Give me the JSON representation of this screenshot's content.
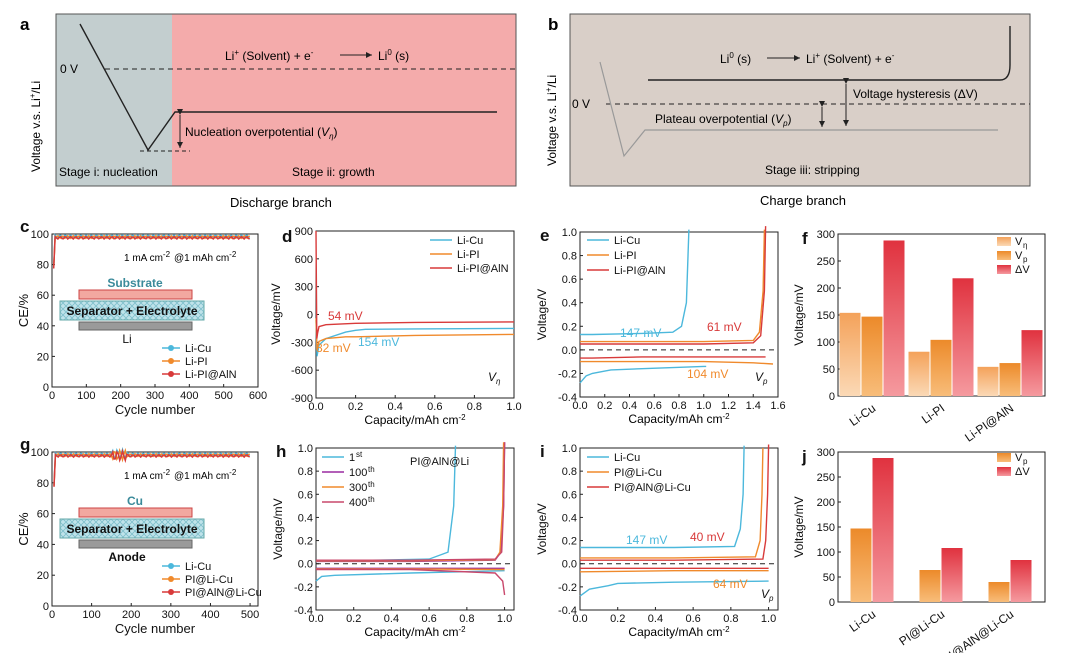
{
  "colors": {
    "li_cu": "#4cb8dc",
    "li_pi": "#f08a2c",
    "li_pi_aln": "#d83a3a",
    "c400": "#c9486c",
    "stage_i": "#c3cecf",
    "stage_ii": "#f4abab",
    "stage_iii": "#d9cfc8",
    "bar_light": "#f5b47a",
    "bar_mid": "#f08a2c",
    "bar_dark": "#e03a46"
  },
  "panel_a": {
    "letter": "a",
    "ylabel": "Voltage v.s. Li",
    "ylabel_sup": "+",
    "ylabel_tail": "/Li",
    "zero": "0 V",
    "reaction_left": "Li",
    "reaction_sup1": "+",
    "reaction_mid": " (Solvent) + e",
    "reaction_sup2": "-",
    "reaction_right": "Li",
    "reaction_sup3": "0",
    "reaction_tail": " (s)",
    "nucleation": "Nucleation overpotential (",
    "nucleation_sym": "V",
    "nucleation_sub": "η",
    "nucleation_close": ")",
    "stage_i": "Stage i: nucleation",
    "stage_ii": "Stage ii: growth",
    "caption": "Discharge branch"
  },
  "panel_b": {
    "letter": "b",
    "ylabel": "Voltage v.s. Li",
    "ylabel_sup": "+",
    "ylabel_tail": "/Li",
    "zero": "0 V",
    "reaction_left": "Li",
    "reaction_sup1": "0",
    "reaction_mid": " (s)",
    "reaction_right": "Li",
    "reaction_sup2": "+",
    "reaction_tail": " (Solvent) + e",
    "reaction_sup3": "-",
    "hysteresis": "Voltage hysteresis (ΔV)",
    "plateau": "Plateau overpotential (",
    "plateau_sym": "V",
    "plateau_sub": "p",
    "plateau_close": ")",
    "stage_iii": "Stage iii: stripping",
    "caption": "Charge branch"
  },
  "panel_c": {
    "letter": "c",
    "ylabel": "CE/%",
    "xlabel": "Cycle number",
    "condition": "1 mA cm",
    "cond_sup1": "-2",
    "cond_mid": "@1 mAh cm",
    "cond_sup2": "-2",
    "top_layer": "Substrate",
    "middle_layer": "Separator + Electrolyte",
    "bottom_layer": "Li",
    "legend": [
      "Li-Cu",
      "Li-PI",
      "Li-PI@AlN"
    ]
  },
  "panel_g": {
    "letter": "g",
    "ylabel": "CE/%",
    "xlabel": "Cycle number",
    "condition": "1 mA cm",
    "cond_sup1": "-2",
    "cond_mid": "@1 mAh cm",
    "cond_sup2": "-2",
    "top_layer": "Cu",
    "middle_layer": "Separator + Electrolyte",
    "bottom_layer": "Anode",
    "legend": [
      "Li-Cu",
      "PI@Li-Cu",
      "PI@AlN@Li-Cu"
    ]
  },
  "panel_d": {
    "letter": "d",
    "ylabel": "Voltage/mV",
    "xlabel": "Capacity/mAh cm",
    "xlabel_sup": "-2",
    "legend": [
      "Li-Cu",
      "Li-PI",
      "Li-PI@AlN"
    ],
    "ann": [
      "54 mV",
      "82 mV",
      "154 mV"
    ],
    "sym": "V",
    "sub": "η"
  },
  "panel_e": {
    "letter": "e",
    "ylabel": "Voltage/V",
    "xlabel": "Capacity/mAh cm",
    "xlabel_sup": "-2",
    "legend": [
      "Li-Cu",
      "Li-PI",
      "Li-PI@AlN"
    ],
    "ann": [
      "147 mV",
      "61 mV",
      "104 mV"
    ],
    "sym": "V",
    "sub": "p"
  },
  "panel_h": {
    "letter": "h",
    "ylabel": "Voltage/mV",
    "xlabel": "Capacity/mAh cm",
    "xlabel_sup": "-2",
    "legend": [
      "1",
      "100",
      "300",
      "400"
    ],
    "legend_sup": [
      "st",
      "th",
      "th",
      "th"
    ],
    "sample": "PI@AlN@Li"
  },
  "panel_i": {
    "letter": "i",
    "ylabel": "Voltage/V",
    "xlabel": "Capacity/mAh cm",
    "xlabel_sup": "-2",
    "legend": [
      "Li-Cu",
      "PI@Li-Cu",
      "PI@AlN@Li-Cu"
    ],
    "ann": [
      "147 mV",
      "40 mV",
      "64 mV"
    ],
    "sym": "V",
    "sub": "p"
  },
  "panel_f": {
    "letter": "f",
    "ylabel": "Voltage/mV",
    "legend": [
      "V",
      "V",
      "ΔV"
    ],
    "legend_sub": [
      "η",
      "p",
      ""
    ]
  },
  "panel_j": {
    "letter": "j",
    "ylabel": "Voltage/mV",
    "legend": [
      "V",
      "ΔV"
    ],
    "legend_sub": [
      "p",
      ""
    ]
  },
  "chart_data": [
    {
      "id": "c",
      "type": "scatter",
      "xlabel": "Cycle number",
      "ylabel": "CE/%",
      "xlim": [
        0,
        600
      ],
      "ylim": [
        0,
        100
      ],
      "xticks": [
        0,
        100,
        200,
        300,
        400,
        500,
        600
      ],
      "yticks": [
        0,
        20,
        40,
        60,
        80,
        100
      ],
      "series": [
        {
          "name": "Li-Cu",
          "approx_value": 98.5
        },
        {
          "name": "Li-PI",
          "approx_value": 98.0
        },
        {
          "name": "Li-PI@AlN",
          "approx_value": 97.5
        }
      ]
    },
    {
      "id": "d",
      "type": "line",
      "xlabel": "Capacity/mAh cm-2",
      "ylabel": "Voltage/mV",
      "xlim": [
        0,
        1.0
      ],
      "ylim": [
        -900,
        900
      ],
      "xticks": [
        0.0,
        0.2,
        0.4,
        0.6,
        0.8,
        1.0
      ],
      "yticks": [
        -900,
        -600,
        -300,
        0,
        300,
        600,
        900
      ],
      "series": [
        {
          "name": "Li-Cu",
          "x": [
            0,
            0.005,
            0.015,
            0.05,
            0.15,
            0.2,
            0.25,
            0.5,
            1.0
          ],
          "y": [
            -60,
            -450,
            -330,
            -260,
            -190,
            -170,
            -160,
            -155,
            -150
          ]
        },
        {
          "name": "Li-PI",
          "x": [
            0,
            0.005,
            0.015,
            0.05,
            0.15,
            0.2,
            0.5,
            1.0
          ],
          "y": [
            -40,
            -380,
            -290,
            -260,
            -240,
            -240,
            -225,
            -215
          ]
        },
        {
          "name": "Li-PI@AlN",
          "x": [
            0,
            0.004,
            0.008,
            0.015,
            0.05,
            0.2,
            0.5,
            1.0
          ],
          "y": [
            900,
            -260,
            -200,
            -130,
            -110,
            -95,
            -85,
            -80
          ]
        }
      ]
    },
    {
      "id": "e",
      "type": "line",
      "xlabel": "Capacity/mAh cm-2",
      "ylabel": "Voltage/V",
      "xlim": [
        0,
        1.6
      ],
      "ylim": [
        -0.4,
        1.0
      ],
      "xticks": [
        0.0,
        0.2,
        0.4,
        0.6,
        0.8,
        1.0,
        1.2,
        1.4,
        1.6
      ],
      "yticks": [
        -0.4,
        -0.2,
        0.0,
        0.2,
        0.4,
        0.6,
        0.8,
        1.0
      ],
      "series": [
        {
          "name": "Li-Cu",
          "discharge": {
            "x": [
              0,
              0.05,
              0.1,
              0.2,
              0.25,
              0.5,
              1.0,
              1.02
            ],
            "y": [
              -0.28,
              -0.22,
              -0.2,
              -0.18,
              -0.17,
              -0.16,
              -0.14,
              -0.14
            ]
          },
          "charge": {
            "x": [
              0,
              0.1,
              0.5,
              0.75,
              0.82,
              0.86,
              0.88
            ],
            "y": [
              0.13,
              0.13,
              0.14,
              0.15,
              0.2,
              0.4,
              1.02
            ]
          }
        },
        {
          "name": "Li-PI",
          "discharge": {
            "x": [
              0,
              0.1,
              0.5,
              1.0,
              1.4,
              1.56
            ],
            "y": [
              -0.1,
              -0.1,
              -0.1,
              -0.1,
              -0.11,
              -0.12
            ]
          },
          "charge": {
            "x": [
              0,
              0.5,
              1.0,
              1.4,
              1.45,
              1.48,
              1.49
            ],
            "y": [
              0.07,
              0.07,
              0.07,
              0.08,
              0.15,
              0.5,
              1.02
            ]
          }
        },
        {
          "name": "Li-PI@AlN",
          "discharge": {
            "x": [
              0,
              0.1,
              0.5,
              1.0,
              1.5
            ],
            "y": [
              -0.07,
              -0.07,
              -0.06,
              -0.06,
              -0.06
            ]
          },
          "charge": {
            "x": [
              0,
              0.5,
              1.0,
              1.4,
              1.46,
              1.49,
              1.5
            ],
            "y": [
              0.05,
              0.05,
              0.05,
              0.06,
              0.12,
              0.5,
              1.05
            ]
          }
        }
      ]
    },
    {
      "id": "f",
      "type": "bar",
      "ylabel": "Voltage/mV",
      "ylim": [
        0,
        300
      ],
      "yticks": [
        0,
        50,
        100,
        150,
        200,
        250,
        300
      ],
      "categories": [
        "Li-Cu",
        "Li-PI",
        "Li-PI@AlN"
      ],
      "series": [
        {
          "name": "Vη",
          "values": [
            154,
            82,
            54
          ]
        },
        {
          "name": "Vp",
          "values": [
            147,
            104,
            61
          ]
        },
        {
          "name": "ΔV",
          "values": [
            288,
            218,
            122
          ]
        }
      ]
    },
    {
      "id": "g",
      "type": "scatter",
      "xlabel": "Cycle number",
      "ylabel": "CE/%",
      "xlim": [
        0,
        520
      ],
      "ylim": [
        0,
        100
      ],
      "xticks": [
        0,
        100,
        200,
        300,
        400,
        500
      ],
      "yticks": [
        0,
        20,
        40,
        60,
        80,
        100
      ],
      "series": [
        {
          "name": "Li-Cu",
          "approx_value": 98.5
        },
        {
          "name": "PI@Li-Cu",
          "approx_value": 98.0
        },
        {
          "name": "PI@AlN@Li-Cu",
          "approx_value": 97.5
        }
      ]
    },
    {
      "id": "h",
      "type": "line",
      "xlabel": "Capacity/mAh cm-2",
      "ylabel": "Voltage/mV",
      "xlim": [
        0,
        1.05
      ],
      "ylim": [
        -0.4,
        1.0
      ],
      "xticks": [
        0.0,
        0.2,
        0.4,
        0.6,
        0.8,
        1.0
      ],
      "yticks": [
        -0.4,
        -0.2,
        0.0,
        0.2,
        0.4,
        0.6,
        0.8,
        1.0
      ],
      "series": [
        {
          "name": "1st",
          "discharge": {
            "x": [
              0,
              0.03,
              0.1,
              0.5,
              1.0
            ],
            "y": [
              -0.15,
              -0.11,
              -0.1,
              -0.08,
              -0.06
            ]
          },
          "charge": {
            "x": [
              0,
              0.3,
              0.6,
              0.7,
              0.73,
              0.74
            ],
            "y": [
              0.03,
              0.03,
              0.04,
              0.1,
              0.5,
              1.02
            ]
          }
        },
        {
          "name": "100th",
          "discharge": {
            "x": [
              0,
              0.5,
              1.0
            ],
            "y": [
              -0.04,
              -0.04,
              -0.04
            ]
          },
          "charge": {
            "x": [
              0,
              0.5,
              0.95,
              0.98,
              0.995,
              1.0
            ],
            "y": [
              0.02,
              0.02,
              0.03,
              0.1,
              0.5,
              1.05
            ]
          }
        },
        {
          "name": "300th",
          "discharge": {
            "x": [
              0,
              0.5,
              1.0
            ],
            "y": [
              -0.045,
              -0.045,
              -0.05
            ]
          },
          "charge": {
            "x": [
              0,
              0.5,
              0.95,
              0.975,
              0.99,
              0.995
            ],
            "y": [
              0.025,
              0.025,
              0.035,
              0.1,
              0.5,
              1.05
            ]
          }
        },
        {
          "name": "400th",
          "discharge": {
            "x": [
              0,
              0.5,
              0.95,
              0.99,
              1.0
            ],
            "y": [
              -0.05,
              -0.05,
              -0.08,
              -0.15,
              -0.27
            ]
          },
          "charge": {
            "x": [
              0,
              0.5,
              0.95,
              0.985,
              0.995,
              1.0
            ],
            "y": [
              0.03,
              0.03,
              0.04,
              0.1,
              0.5,
              1.05
            ]
          }
        }
      ]
    },
    {
      "id": "i",
      "type": "line",
      "xlabel": "Capacity/mAh cm-2",
      "ylabel": "Voltage/V",
      "xlim": [
        0,
        1.05
      ],
      "ylim": [
        -0.4,
        1.0
      ],
      "xticks": [
        0.0,
        0.2,
        0.4,
        0.6,
        0.8,
        1.0
      ],
      "yticks": [
        -0.4,
        -0.2,
        0.0,
        0.2,
        0.4,
        0.6,
        0.8,
        1.0
      ],
      "series": [
        {
          "name": "Li-Cu",
          "discharge": {
            "x": [
              0,
              0.05,
              0.15,
              0.2,
              0.5,
              1.0
            ],
            "y": [
              -0.28,
              -0.22,
              -0.19,
              -0.17,
              -0.16,
              -0.15
            ]
          },
          "charge": {
            "x": [
              0,
              0.5,
              0.82,
              0.85,
              0.865,
              0.87
            ],
            "y": [
              0.14,
              0.14,
              0.15,
              0.3,
              0.6,
              1.02
            ]
          }
        },
        {
          "name": "PI@Li-Cu",
          "discharge": {
            "x": [
              0,
              0.5,
              1.0
            ],
            "y": [
              -0.07,
              -0.06,
              -0.06
            ]
          },
          "charge": {
            "x": [
              0,
              0.5,
              0.93,
              0.955,
              0.965,
              0.97
            ],
            "y": [
              0.05,
              0.05,
              0.06,
              0.2,
              0.6,
              1.0
            ]
          }
        },
        {
          "name": "PI@AlN@Li-Cu",
          "discharge": {
            "x": [
              0,
              0.5,
              1.0
            ],
            "y": [
              -0.04,
              -0.04,
              -0.04
            ]
          },
          "charge": {
            "x": [
              0,
              0.5,
              0.97,
              0.985,
              0.995,
              1.0
            ],
            "y": [
              0.03,
              0.03,
              0.04,
              0.2,
              0.6,
              1.03
            ]
          }
        }
      ]
    },
    {
      "id": "j",
      "type": "bar",
      "ylabel": "Voltage/mV",
      "ylim": [
        0,
        300
      ],
      "yticks": [
        0,
        50,
        100,
        150,
        200,
        250,
        300
      ],
      "categories": [
        "Li-Cu",
        "PI@Li-Cu",
        "PI@AlN@Li-Cu"
      ],
      "series": [
        {
          "name": "Vp",
          "values": [
            147,
            64,
            40
          ]
        },
        {
          "name": "ΔV",
          "values": [
            288,
            108,
            84
          ]
        }
      ]
    }
  ]
}
